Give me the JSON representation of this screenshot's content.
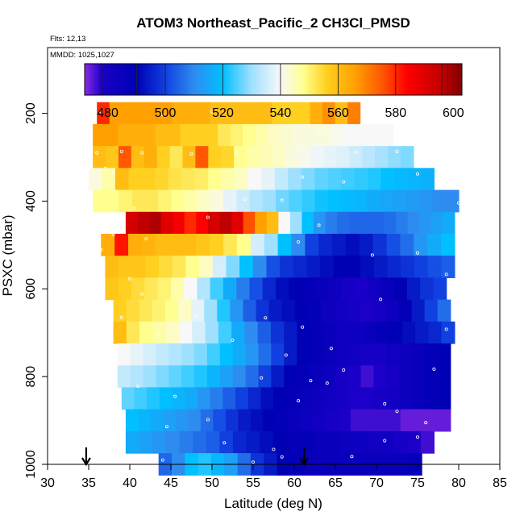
{
  "chart_data": {
    "type": "heatmap",
    "title": "ATOM3 Northeast_Pacific_2 CH3Cl_PMSD",
    "flights_label": "Flts: 12,13",
    "mmdd_label": "MMDD: 1025,1027",
    "xlabel": "Latitude (deg N)",
    "ylabel": "PSXC (mbar)",
    "xlim": [
      30,
      85
    ],
    "ylim": [
      1000,
      50
    ],
    "x_ticks": [
      "30",
      "35",
      "40",
      "45",
      "50",
      "55",
      "60",
      "65",
      "70",
      "75",
      "80",
      "85"
    ],
    "y_ticks": [
      "200",
      "400",
      "600",
      "800",
      "1000"
    ],
    "colorbar": {
      "range": [
        472,
        603
      ],
      "tick_values": [
        480,
        500,
        520,
        540,
        560,
        580,
        600
      ],
      "tick_labels": [
        "480",
        "500",
        "520",
        "540",
        "560",
        "580",
        "600"
      ],
      "stops": [
        [
          472,
          "#8a2be2"
        ],
        [
          478,
          "#1a00c8"
        ],
        [
          490,
          "#0000b4"
        ],
        [
          500,
          "#1040e0"
        ],
        [
          510,
          "#2e8cf0"
        ],
        [
          520,
          "#00c0ff"
        ],
        [
          530,
          "#a0e0ff"
        ],
        [
          540,
          "#f8f8f8"
        ],
        [
          548,
          "#ffff90"
        ],
        [
          556,
          "#ffd020"
        ],
        [
          566,
          "#ffa000"
        ],
        [
          576,
          "#ff5000"
        ],
        [
          584,
          "#ff0000"
        ],
        [
          596,
          "#c00000"
        ],
        [
          603,
          "#800000"
        ]
      ]
    },
    "arrows_latitude": [
      34.7,
      61.2
    ],
    "bands": [
      {
        "p": 200,
        "lat_min": 36.0,
        "lat_max": 68.0,
        "values": [
          580,
          566,
          566,
          566,
          566,
          566,
          563,
          563,
          563,
          560,
          560,
          560,
          560,
          560,
          556,
          556,
          556,
          563,
          568,
          560,
          570
        ]
      },
      {
        "p": 250,
        "lat_min": 35.5,
        "lat_max": 72.0,
        "values": [
          566,
          566,
          563,
          563,
          563,
          560,
          560,
          556,
          556,
          556,
          552,
          550,
          548,
          546,
          544,
          543,
          542,
          542,
          542,
          541,
          540,
          540,
          540,
          540
        ]
      },
      {
        "p": 300,
        "lat_min": 35.5,
        "lat_max": 74.5,
        "values": [
          560,
          558,
          575,
          560,
          563,
          556,
          552,
          560,
          575,
          556,
          555,
          548,
          546,
          545,
          544,
          542,
          541,
          539,
          538,
          537,
          535,
          533,
          531,
          529,
          528
        ]
      },
      {
        "p": 350,
        "lat_min": 35.0,
        "lat_max": 77.0,
        "values": [
          542,
          546,
          560,
          556,
          556,
          555,
          553,
          552,
          551,
          548,
          546,
          544,
          540,
          538,
          534,
          530,
          528,
          526,
          525,
          524,
          523,
          522,
          520,
          519,
          518,
          517
        ]
      },
      {
        "p": 400,
        "lat_min": 35.5,
        "lat_max": 80.0,
        "values": [
          548,
          548,
          550,
          552,
          552,
          550,
          548,
          546,
          544,
          542,
          538,
          535,
          532,
          530,
          527,
          525,
          523,
          521,
          520,
          519,
          518,
          516,
          515,
          514,
          513,
          512,
          510,
          510
        ]
      },
      {
        "p": 450,
        "lat_min": 39.5,
        "lat_max": 79.5,
        "values": [
          592,
          596,
          598,
          590,
          586,
          580,
          584,
          592,
          596,
          590,
          576,
          566,
          560,
          540,
          530,
          520,
          512,
          508,
          506,
          505,
          505,
          505,
          506,
          508,
          510,
          512,
          514,
          516
        ]
      },
      {
        "p": 500,
        "lat_min": 36.5,
        "lat_max": 79.5,
        "values": [
          563,
          582,
          563,
          562,
          560,
          560,
          560,
          558,
          556,
          552,
          548,
          536,
          530,
          520,
          510,
          500,
          496,
          494,
          492,
          494,
          498,
          502,
          506,
          512,
          516,
          520
        ]
      },
      {
        "p": 550,
        "lat_min": 37.0,
        "lat_max": 79.5,
        "values": [
          560,
          558,
          558,
          556,
          554,
          552,
          548,
          544,
          536,
          528,
          520,
          510,
          502,
          498,
          496,
          494,
          492,
          490,
          490,
          492,
          494,
          496,
          498,
          500,
          502,
          504
        ]
      },
      {
        "p": 600,
        "lat_min": 37.0,
        "lat_max": 78.5,
        "values": [
          558,
          556,
          554,
          552,
          550,
          546,
          540,
          532,
          524,
          516,
          508,
          502,
          496,
          492,
          490,
          488,
          486,
          484,
          480,
          478,
          482,
          486,
          490,
          494,
          498,
          500
        ]
      },
      {
        "p": 650,
        "lat_min": 38.0,
        "lat_max": 79.0,
        "values": [
          556,
          554,
          552,
          550,
          548,
          544,
          538,
          530,
          522,
          512,
          504,
          498,
          494,
          492,
          490,
          488,
          484,
          482,
          480,
          478,
          480,
          484,
          488,
          494,
          500,
          506
        ]
      },
      {
        "p": 700,
        "lat_min": 38.0,
        "lat_max": 79.5,
        "values": [
          560,
          552,
          548,
          546,
          544,
          540,
          536,
          530,
          524,
          516,
          510,
          504,
          498,
          494,
          490,
          488,
          486,
          484,
          484,
          486,
          488,
          490,
          492,
          494,
          496,
          500
        ]
      },
      {
        "p": 750,
        "lat_min": 38.5,
        "lat_max": 79.0,
        "values": [
          540,
          538,
          536,
          534,
          532,
          530,
          528,
          524,
          520,
          516,
          512,
          506,
          500,
          494,
          490,
          488,
          486,
          484,
          482,
          480,
          480,
          482,
          484,
          486,
          488,
          490
        ]
      },
      {
        "p": 800,
        "lat_min": 38.5,
        "lat_max": 79.0,
        "values": [
          534,
          532,
          530,
          528,
          526,
          524,
          522,
          518,
          514,
          510,
          506,
          500,
          494,
          490,
          488,
          486,
          484,
          480,
          478,
          476,
          478,
          480,
          484,
          486,
          488,
          490
        ]
      },
      {
        "p": 850,
        "lat_min": 39.0,
        "lat_max": 79.0,
        "values": [
          526,
          524,
          522,
          520,
          518,
          516,
          512,
          508,
          504,
          500,
          496,
          492,
          490,
          488,
          486,
          484,
          482,
          480,
          478,
          478,
          480,
          482,
          484,
          486,
          488,
          490
        ]
      },
      {
        "p": 900,
        "lat_min": 39.5,
        "lat_max": 79.0,
        "values": [
          520,
          518,
          516,
          514,
          512,
          510,
          506,
          502,
          498,
          494,
          492,
          490,
          488,
          486,
          484,
          482,
          480,
          478,
          476,
          476,
          476,
          476,
          474,
          474,
          474,
          474
        ]
      },
      {
        "p": 950,
        "lat_min": 39.5,
        "lat_max": 77.0,
        "values": [
          516,
          514,
          512,
          510,
          508,
          506,
          504,
          500,
          496,
          494,
          492,
          490,
          488,
          488,
          486,
          486,
          484,
          484,
          482,
          482,
          480,
          478,
          476
        ]
      },
      {
        "p": 1000,
        "lat_min": 43.5,
        "lat_max": 75.5,
        "values": [
          505,
          510,
          520,
          522,
          518,
          514,
          506,
          498,
          494,
          490,
          488,
          486,
          486,
          486,
          486,
          486,
          486,
          486,
          486,
          488
        ]
      }
    ],
    "markers": [
      [
        36.5,
        196
      ],
      [
        44.0,
        203
      ],
      [
        50.0,
        196
      ],
      [
        65.5,
        196
      ],
      [
        59.0,
        206
      ],
      [
        63.0,
        240
      ],
      [
        36.0,
        290
      ],
      [
        39.0,
        287
      ],
      [
        41.5,
        290
      ],
      [
        47.5,
        292
      ],
      [
        53.0,
        290
      ],
      [
        67.5,
        288
      ],
      [
        72.5,
        287
      ],
      [
        37.0,
        325
      ],
      [
        38.0,
        335
      ],
      [
        61.0,
        345
      ],
      [
        75.0,
        338
      ],
      [
        80.0,
        404
      ],
      [
        66.0,
        356
      ],
      [
        58.5,
        398
      ],
      [
        40.5,
        416
      ],
      [
        49.5,
        437
      ],
      [
        54.0,
        396
      ],
      [
        63.0,
        455
      ],
      [
        38.0,
        476
      ],
      [
        42.0,
        486
      ],
      [
        60.5,
        493
      ],
      [
        36.5,
        511
      ],
      [
        69.5,
        523
      ],
      [
        78.5,
        567
      ],
      [
        75.0,
        518
      ],
      [
        40.0,
        577
      ],
      [
        41.5,
        612
      ],
      [
        70.5,
        624
      ],
      [
        39.0,
        665
      ],
      [
        48.0,
        661
      ],
      [
        56.5,
        666
      ],
      [
        61.0,
        687
      ],
      [
        78.5,
        692
      ],
      [
        43.5,
        704
      ],
      [
        52.5,
        717
      ],
      [
        37.5,
        738
      ],
      [
        59.0,
        751
      ],
      [
        64.5,
        736
      ],
      [
        66.0,
        785
      ],
      [
        56.0,
        803
      ],
      [
        62.0,
        809
      ],
      [
        77.0,
        783
      ],
      [
        41.0,
        822
      ],
      [
        45.5,
        845
      ],
      [
        64.0,
        815
      ],
      [
        60.5,
        855
      ],
      [
        71.0,
        862
      ],
      [
        72.5,
        879
      ],
      [
        44.5,
        914
      ],
      [
        49.5,
        898
      ],
      [
        39.0,
        946
      ],
      [
        51.5,
        951
      ],
      [
        57.5,
        966
      ],
      [
        71.0,
        946
      ],
      [
        75.0,
        938
      ],
      [
        76.0,
        905
      ],
      [
        44.0,
        990
      ],
      [
        55.0,
        995
      ],
      [
        58.5,
        983
      ],
      [
        67.0,
        982
      ]
    ]
  }
}
